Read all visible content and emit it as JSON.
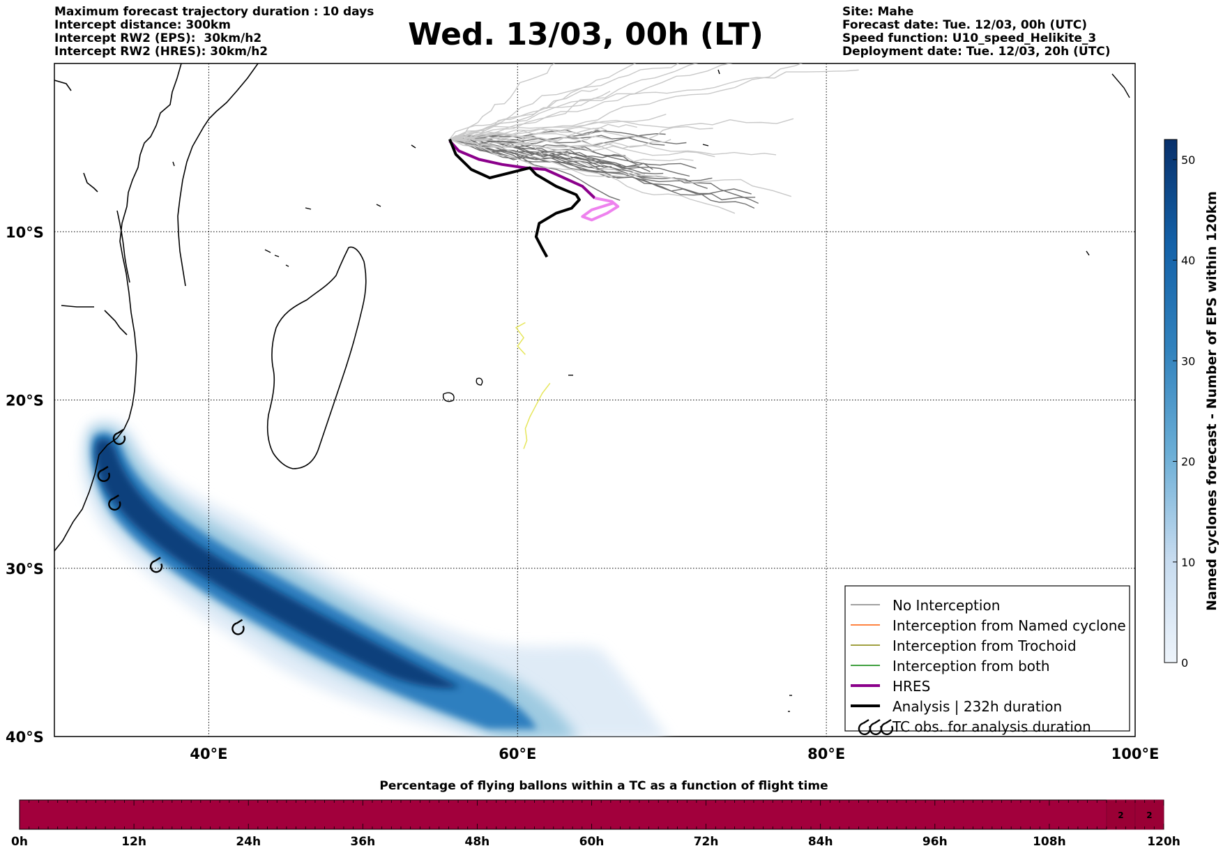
{
  "header": {
    "left": [
      "Maximum forecast trajectory duration : 10 days",
      "Intercept distance: 300km",
      "Intercept RW2 (EPS):  30km/h2",
      "Intercept RW2 (HRES): 30km/h2"
    ],
    "title": "Wed. 13/03, 00h (LT)",
    "right": [
      "Site: Mahe",
      "Forecast date: Tue. 12/03, 00h (UTC)",
      "Speed function: U10_speed_Helikite_3",
      "Deployment date: Tue. 12/03, 20h (UTC)"
    ]
  },
  "map": {
    "lon_range": [
      30,
      100
    ],
    "lat_range": [
      -40,
      0
    ],
    "lat_ticks": [
      {
        "value": -10,
        "label": "10°S"
      },
      {
        "value": -20,
        "label": "20°S"
      },
      {
        "value": -30,
        "label": "30°S"
      },
      {
        "value": -40,
        "label": "40°S"
      }
    ],
    "lon_ticks": [
      {
        "value": 40,
        "label": "40°E"
      },
      {
        "value": 60,
        "label": "60°E"
      },
      {
        "value": 80,
        "label": "80°E"
      },
      {
        "value": 100,
        "label": "100°E"
      }
    ],
    "gridlines": true,
    "tc_observations": [
      {
        "lon": 34.2,
        "lat": -22.3
      },
      {
        "lon": 33.2,
        "lat": -24.5
      },
      {
        "lon": 33.9,
        "lat": -26.2
      },
      {
        "lon": 36.6,
        "lat": -29.9
      },
      {
        "lon": 41.9,
        "lat": -33.6
      }
    ],
    "hres_track": [
      {
        "lon": 55.6,
        "lat": -4.6
      },
      {
        "lon": 56.2,
        "lat": -5.2
      },
      {
        "lon": 57.5,
        "lat": -5.7
      },
      {
        "lon": 59.0,
        "lat": -6.0
      },
      {
        "lon": 60.5,
        "lat": -6.2
      },
      {
        "lon": 61.8,
        "lat": -6.3
      },
      {
        "lon": 63.0,
        "lat": -6.8
      },
      {
        "lon": 64.2,
        "lat": -7.3
      },
      {
        "lon": 65.0,
        "lat": -8.0
      },
      {
        "lon": 66.1,
        "lat": -8.2
      },
      {
        "lon": 66.5,
        "lat": -8.5
      },
      {
        "lon": 65.8,
        "lat": -8.9
      },
      {
        "lon": 64.8,
        "lat": -9.3
      },
      {
        "lon": 64.2,
        "lat": -9.1
      },
      {
        "lon": 64.8,
        "lat": -8.7
      },
      {
        "lon": 66.2,
        "lat": -8.3
      }
    ],
    "analysis_track": [
      {
        "lon": 55.6,
        "lat": -4.5
      },
      {
        "lon": 56.0,
        "lat": -5.4
      },
      {
        "lon": 57.0,
        "lat": -6.3
      },
      {
        "lon": 58.2,
        "lat": -6.8
      },
      {
        "lon": 59.5,
        "lat": -6.5
      },
      {
        "lon": 60.8,
        "lat": -6.2
      },
      {
        "lon": 61.2,
        "lat": -6.6
      },
      {
        "lon": 62.5,
        "lat": -7.3
      },
      {
        "lon": 63.8,
        "lat": -7.8
      },
      {
        "lon": 64.0,
        "lat": -8.1
      },
      {
        "lon": 63.5,
        "lat": -8.6
      },
      {
        "lon": 62.5,
        "lat": -8.9
      },
      {
        "lon": 61.4,
        "lat": -9.5
      },
      {
        "lon": 61.2,
        "lat": -10.3
      },
      {
        "lon": 61.6,
        "lat": -11.0
      },
      {
        "lon": 61.9,
        "lat": -11.5
      }
    ],
    "trochoid_tracks": [
      [
        {
          "lon": 60.5,
          "lat": -15.4
        },
        {
          "lon": 59.9,
          "lat": -15.7
        },
        {
          "lon": 60.4,
          "lat": -16.3
        },
        {
          "lon": 60.0,
          "lat": -16.8
        },
        {
          "lon": 60.5,
          "lat": -17.3
        }
      ],
      [
        {
          "lon": 62.1,
          "lat": -19.0
        },
        {
          "lon": 61.6,
          "lat": -19.6
        },
        {
          "lon": 61.2,
          "lat": -20.3
        },
        {
          "lon": 60.8,
          "lat": -21.0
        },
        {
          "lon": 60.5,
          "lat": -21.7
        },
        {
          "lon": 60.6,
          "lat": -22.4
        },
        {
          "lon": 60.4,
          "lat": -22.9
        }
      ]
    ]
  },
  "colorbar": {
    "title": "Named cyclones forecast - Number of EPS within 120km",
    "min": 0,
    "max": 52,
    "ticks": [
      0,
      10,
      20,
      30,
      40,
      50
    ],
    "color_low": "#e6eef8",
    "color_high": "#08306b"
  },
  "legend": {
    "items": [
      {
        "label": "No Interception",
        "color": "#808080",
        "width": 1.5,
        "kind": "line"
      },
      {
        "label": "Interception from Named cyclone",
        "color": "#ff5a00",
        "width": 1.5,
        "kind": "line"
      },
      {
        "label": "Interception from Trochoid",
        "color": "#808000",
        "width": 1.5,
        "kind": "line"
      },
      {
        "label": "Interception from both",
        "color": "#008000",
        "width": 1.5,
        "kind": "line"
      },
      {
        "label": "HRES",
        "color": "#8b008b",
        "width": 4,
        "kind": "line"
      },
      {
        "label": "Analysis | 232h duration",
        "color": "#000000",
        "width": 4,
        "kind": "line"
      },
      {
        "label": "TC obs. for analysis duration",
        "color": "#000000",
        "width": 2,
        "kind": "tc-symbol"
      }
    ]
  },
  "colors": {
    "hres": "#8b008b",
    "hres_late": "#ee82ee",
    "analysis": "#000000",
    "trochoid": "#e6e65a",
    "strip": "#a2003c",
    "strip_late": "#9a0035"
  },
  "strip": {
    "title": "Percentage of flying ballons within a TC as a function of flight time",
    "hours_max": 120,
    "ticks": [
      "0h",
      "12h",
      "24h",
      "36h",
      "48h",
      "60h",
      "72h",
      "84h",
      "96h",
      "108h",
      "120h"
    ],
    "values": [
      {
        "start_h": 114,
        "end_h": 117,
        "label": "2"
      },
      {
        "start_h": 117,
        "end_h": 120,
        "label": "2"
      }
    ]
  }
}
